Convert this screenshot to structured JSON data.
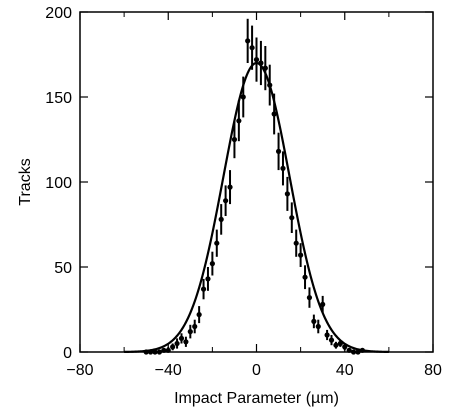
{
  "chart_data": {
    "type": "scatter",
    "title": "",
    "xlabel": "Impact Parameter  (µm)",
    "ylabel": "Tracks",
    "xlim": [
      -80,
      80
    ],
    "ylim": [
      0,
      200
    ],
    "x_ticks": [
      -80,
      -40,
      0,
      40,
      80
    ],
    "x_tick_labels": [
      "−80",
      "−40",
      "0",
      "40",
      "80"
    ],
    "y_ticks": [
      0,
      50,
      100,
      150,
      200
    ],
    "y_tick_labels": [
      "0",
      "50",
      "100",
      "150",
      "200"
    ],
    "grid": false,
    "legend": "none",
    "series": [
      {
        "kind": "data-with-errors",
        "points": [
          {
            "x": -50,
            "y": 0,
            "err": 1
          },
          {
            "x": -48,
            "y": 0,
            "err": 1
          },
          {
            "x": -46,
            "y": 0,
            "err": 1
          },
          {
            "x": -44,
            "y": 0,
            "err": 1
          },
          {
            "x": -42,
            "y": 1,
            "err": 1
          },
          {
            "x": -40,
            "y": 1,
            "err": 2
          },
          {
            "x": -38,
            "y": 3,
            "err": 2
          },
          {
            "x": -36,
            "y": 5,
            "err": 3
          },
          {
            "x": -34,
            "y": 8,
            "err": 3
          },
          {
            "x": -32,
            "y": 6,
            "err": 3
          },
          {
            "x": -30,
            "y": 12,
            "err": 4
          },
          {
            "x": -28,
            "y": 15,
            "err": 4
          },
          {
            "x": -26,
            "y": 22,
            "err": 5
          },
          {
            "x": -24,
            "y": 37,
            "err": 6
          },
          {
            "x": -22,
            "y": 43,
            "err": 7
          },
          {
            "x": -20,
            "y": 52,
            "err": 7
          },
          {
            "x": -18,
            "y": 64,
            "err": 8
          },
          {
            "x": -16,
            "y": 78,
            "err": 9
          },
          {
            "x": -14,
            "y": 89,
            "err": 9
          },
          {
            "x": -12,
            "y": 97,
            "err": 10
          },
          {
            "x": -10,
            "y": 125,
            "err": 11
          },
          {
            "x": -8,
            "y": 136,
            "err": 12
          },
          {
            "x": -6,
            "y": 150,
            "err": 12
          },
          {
            "x": -4,
            "y": 183,
            "err": 13
          },
          {
            "x": -2,
            "y": 179,
            "err": 13
          },
          {
            "x": 0,
            "y": 172,
            "err": 13
          },
          {
            "x": 2,
            "y": 170,
            "err": 13
          },
          {
            "x": 4,
            "y": 167,
            "err": 13
          },
          {
            "x": 6,
            "y": 157,
            "err": 12
          },
          {
            "x": 8,
            "y": 140,
            "err": 12
          },
          {
            "x": 10,
            "y": 118,
            "err": 11
          },
          {
            "x": 12,
            "y": 108,
            "err": 10
          },
          {
            "x": 14,
            "y": 93,
            "err": 10
          },
          {
            "x": 16,
            "y": 79,
            "err": 9
          },
          {
            "x": 18,
            "y": 64,
            "err": 8
          },
          {
            "x": 20,
            "y": 57,
            "err": 7
          },
          {
            "x": 22,
            "y": 44,
            "err": 7
          },
          {
            "x": 24,
            "y": 32,
            "err": 6
          },
          {
            "x": 26,
            "y": 18,
            "err": 4
          },
          {
            "x": 28,
            "y": 15,
            "err": 4
          },
          {
            "x": 30,
            "y": 28,
            "err": 5
          },
          {
            "x": 32,
            "y": 10,
            "err": 3
          },
          {
            "x": 34,
            "y": 7,
            "err": 3
          },
          {
            "x": 36,
            "y": 4,
            "err": 2
          },
          {
            "x": 38,
            "y": 5,
            "err": 2
          },
          {
            "x": 40,
            "y": 3,
            "err": 2
          },
          {
            "x": 42,
            "y": 1,
            "err": 1
          },
          {
            "x": 44,
            "y": 0,
            "err": 1
          },
          {
            "x": 46,
            "y": 0,
            "err": 1
          },
          {
            "x": 48,
            "y": 1,
            "err": 1
          }
        ]
      },
      {
        "kind": "fit-curve",
        "shape": "gaussian",
        "amplitude": 170,
        "mean": 0,
        "sigma": 15
      }
    ]
  }
}
